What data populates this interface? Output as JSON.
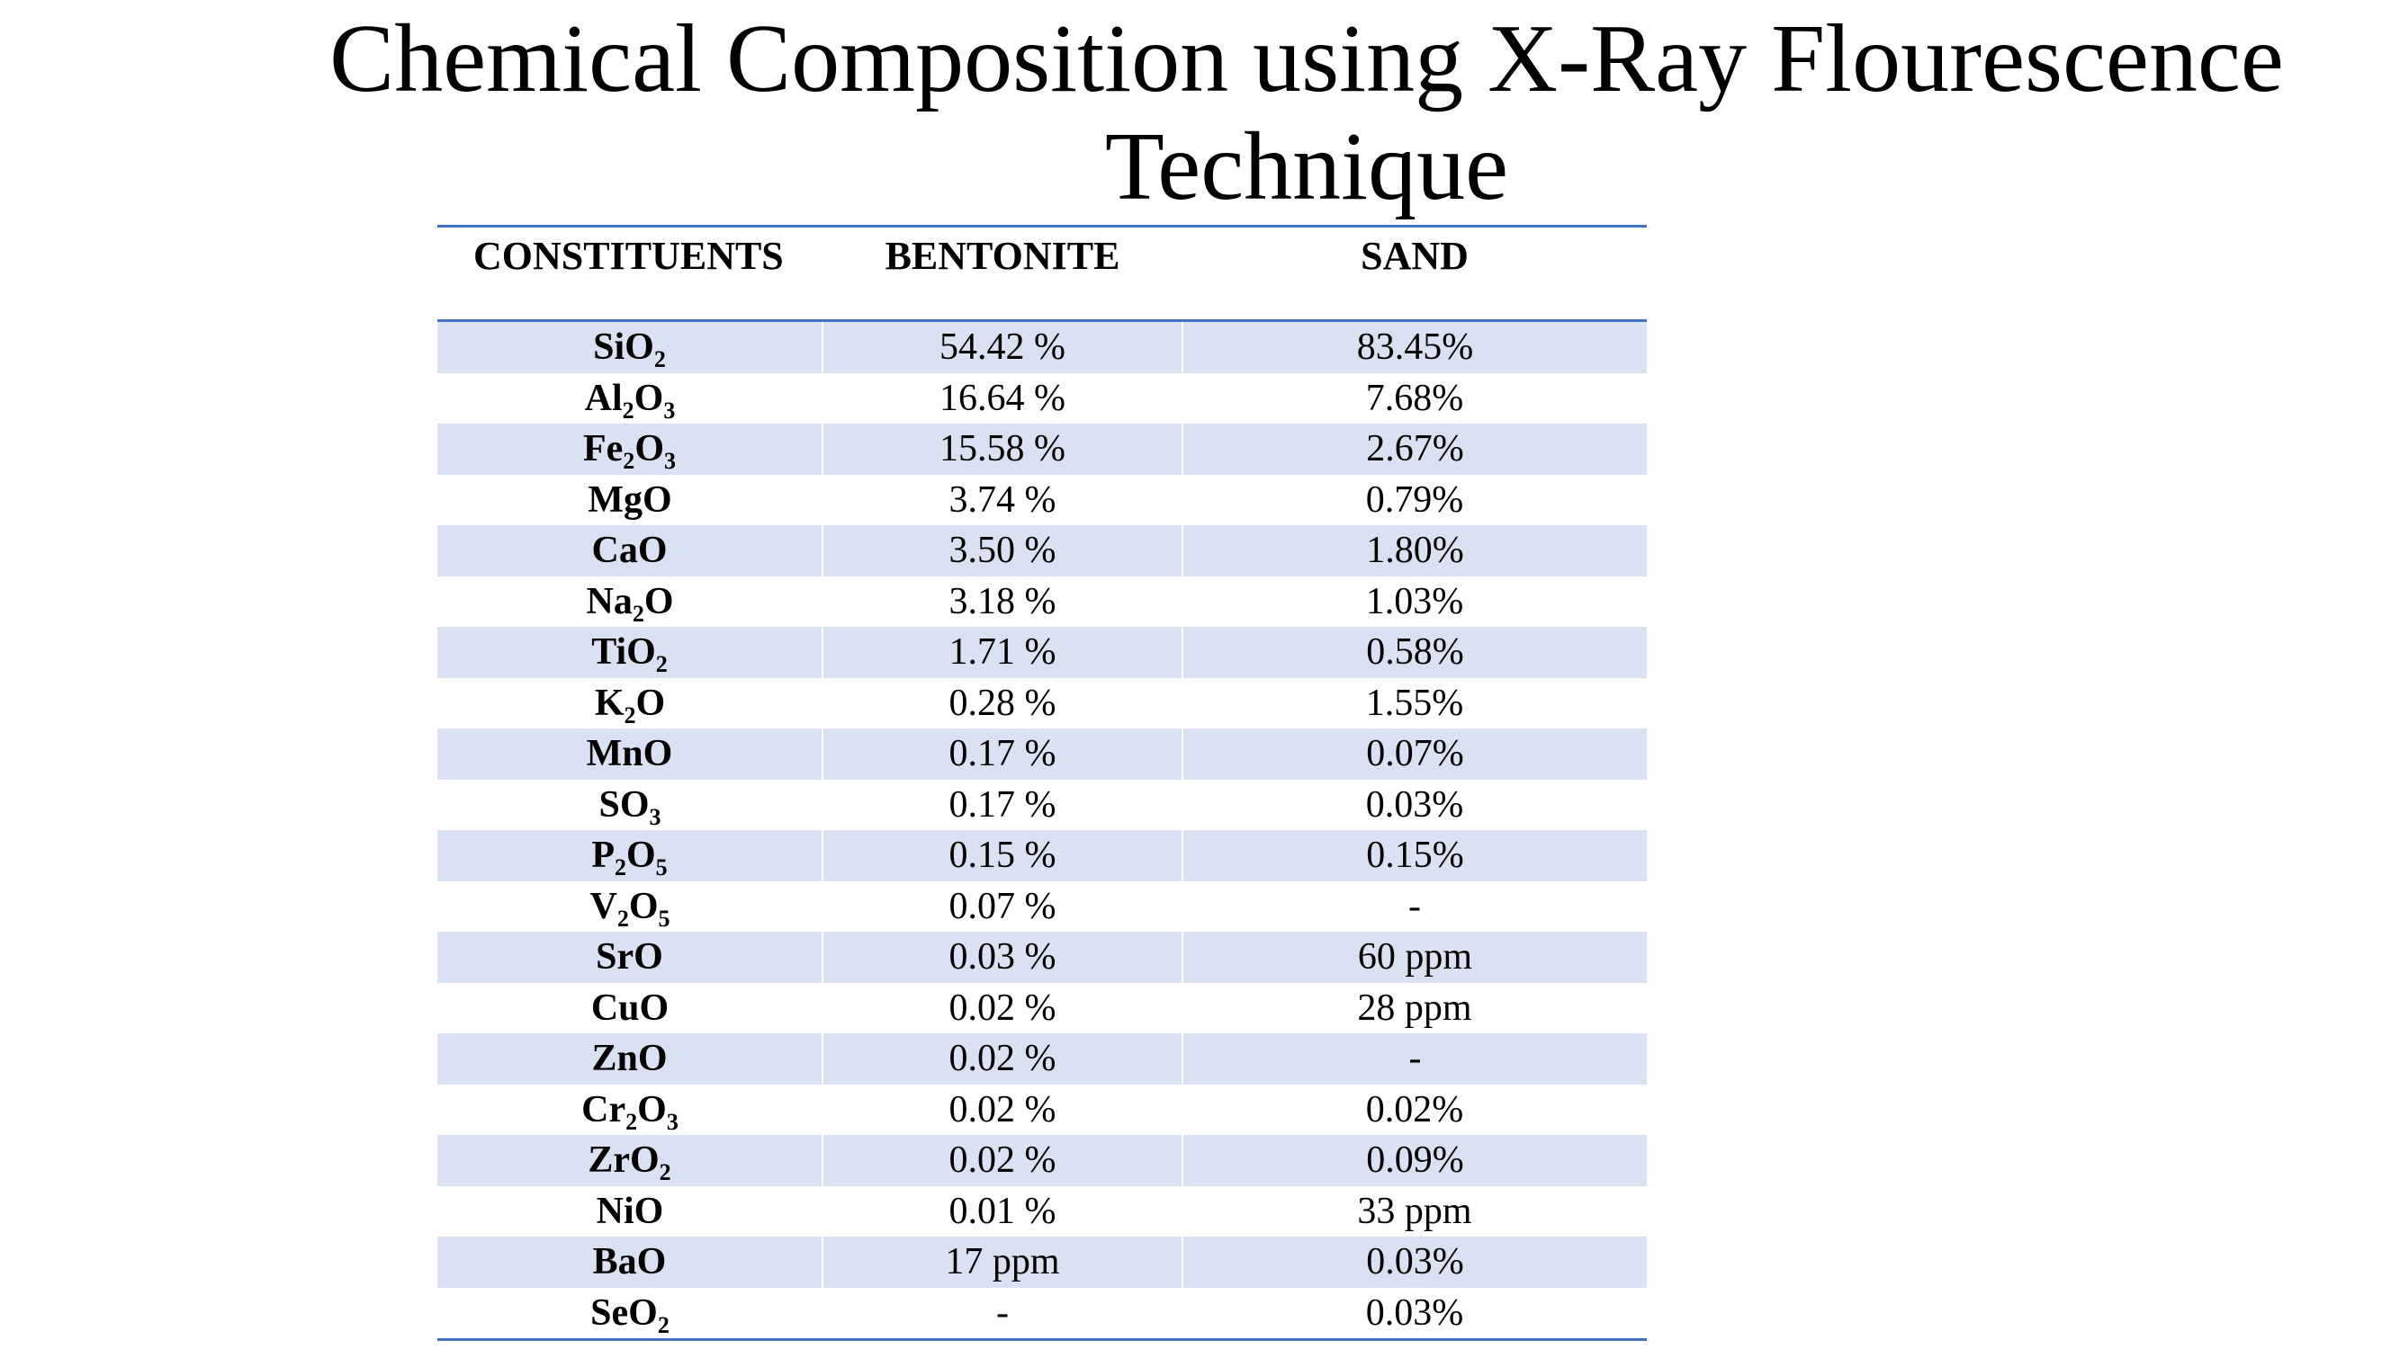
{
  "title_line1": "Chemical Composition using X-Ray Flourescence",
  "title_line2": "Technique",
  "headers": [
    "CONSTITUENTS",
    "BENTONITE",
    "SAND"
  ],
  "rows": [
    {
      "parts": [
        [
          "Si",
          ""
        ],
        [
          "O",
          "2"
        ]
      ],
      "bentonite": "54.42 %",
      "sand": "83.45%"
    },
    {
      "parts": [
        [
          "Al",
          "2"
        ],
        [
          "O",
          "3"
        ]
      ],
      "bentonite": "16.64 %",
      "sand": "7.68%"
    },
    {
      "parts": [
        [
          "Fe",
          "2"
        ],
        [
          "O",
          "3"
        ]
      ],
      "bentonite": "15.58 %",
      "sand": "2.67%"
    },
    {
      "parts": [
        [
          "MgO",
          ""
        ]
      ],
      "bentonite": "3.74 %",
      "sand": "0.79%"
    },
    {
      "parts": [
        [
          "CaO",
          ""
        ]
      ],
      "bentonite": "3.50 %",
      "sand": "1.80%"
    },
    {
      "parts": [
        [
          "Na",
          "2"
        ],
        [
          "O",
          ""
        ]
      ],
      "bentonite": "3.18 %",
      "sand": "1.03%"
    },
    {
      "parts": [
        [
          "Ti",
          ""
        ],
        [
          "O",
          "2"
        ]
      ],
      "bentonite": "1.71 %",
      "sand": "0.58%"
    },
    {
      "parts": [
        [
          "K",
          "2"
        ],
        [
          "O",
          ""
        ]
      ],
      "bentonite": "0.28 %",
      "sand": "1.55%"
    },
    {
      "parts": [
        [
          "MnO",
          ""
        ]
      ],
      "bentonite": "0.17 %",
      "sand": "0.07%"
    },
    {
      "parts": [
        [
          "S",
          ""
        ],
        [
          "O",
          "3"
        ]
      ],
      "bentonite": "0.17 %",
      "sand": "0.03%"
    },
    {
      "parts": [
        [
          "P",
          "2"
        ],
        [
          "O",
          "5"
        ]
      ],
      "bentonite": "0.15 %",
      "sand": "0.15%"
    },
    {
      "parts": [
        [
          "V",
          "2"
        ],
        [
          "O",
          "5"
        ]
      ],
      "bentonite": "0.07 %",
      "sand": "-"
    },
    {
      "parts": [
        [
          "SrO",
          ""
        ]
      ],
      "bentonite": "0.03 %",
      "sand": "60 ppm"
    },
    {
      "parts": [
        [
          "CuO",
          ""
        ]
      ],
      "bentonite": "0.02 %",
      "sand": "28 ppm"
    },
    {
      "parts": [
        [
          "ZnO",
          ""
        ]
      ],
      "bentonite": "0.02 %",
      "sand": "-"
    },
    {
      "parts": [
        [
          "Cr",
          "2"
        ],
        [
          "O",
          "3"
        ]
      ],
      "bentonite": "0.02 %",
      "sand": "0.02%"
    },
    {
      "parts": [
        [
          "Zr",
          ""
        ],
        [
          "O",
          "2"
        ]
      ],
      "bentonite": "0.02 %",
      "sand": "0.09%"
    },
    {
      "parts": [
        [
          "NiO",
          ""
        ]
      ],
      "bentonite": "0.01 %",
      "sand": "33 ppm"
    },
    {
      "parts": [
        [
          "BaO",
          ""
        ]
      ],
      "bentonite": "17 ppm",
      "sand": "0.03%"
    },
    {
      "parts": [
        [
          "Se",
          ""
        ],
        [
          "O",
          "2"
        ]
      ],
      "bentonite": "-",
      "sand": "0.03%"
    }
  ]
}
